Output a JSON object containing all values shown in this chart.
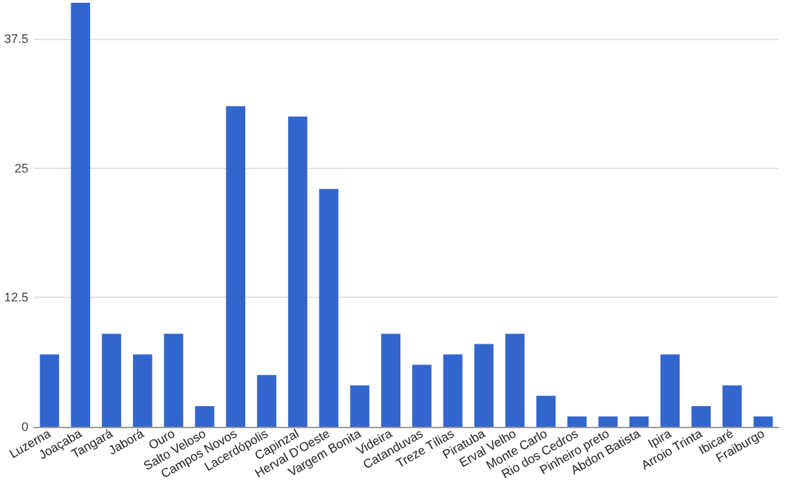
{
  "chart_data": {
    "type": "bar",
    "categories": [
      "Luzerna",
      "Joaçaba",
      "Tangará",
      "Jaborá",
      "Ouro",
      "Salto Veloso",
      "Campos Novos",
      "Lacerdópolis",
      "Capinzal",
      "Herval D'Oeste",
      "Vargem Bonita",
      "Videira",
      "Catanduvas",
      "Treze Tílias",
      "Piratuba",
      "Erval Velho",
      "Monte Carlo",
      "Rio dos Cedros",
      "Pinheiro preto",
      "Abdon Batista",
      "Ipira",
      "Arroio Trinta",
      "Ibicaré",
      "Fraiburgo"
    ],
    "values": [
      7,
      41,
      9,
      7,
      9,
      2,
      31,
      5,
      30,
      23,
      4,
      9,
      6,
      7,
      8,
      9,
      3,
      1,
      1,
      1,
      7,
      2,
      4,
      1
    ],
    "color": "#3366cc",
    "ylim": [
      0,
      41
    ],
    "yticks": [
      0,
      12.5,
      25,
      37.5
    ],
    "grid": "y"
  }
}
